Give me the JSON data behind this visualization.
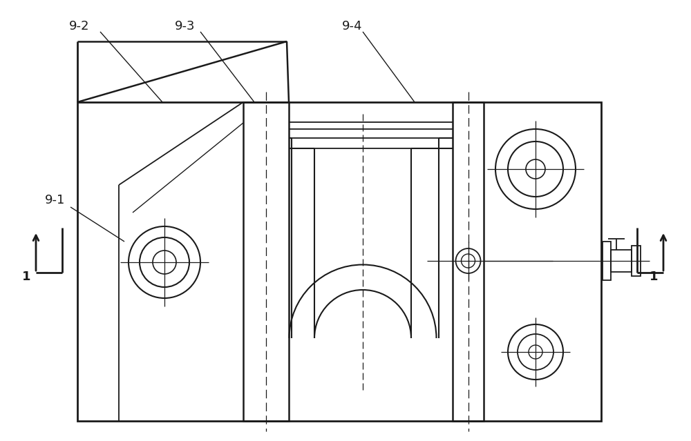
{
  "bg_color": "#ffffff",
  "lc": "#1a1a1a",
  "fig_w": 10.0,
  "fig_h": 6.39,
  "dpi": 100
}
